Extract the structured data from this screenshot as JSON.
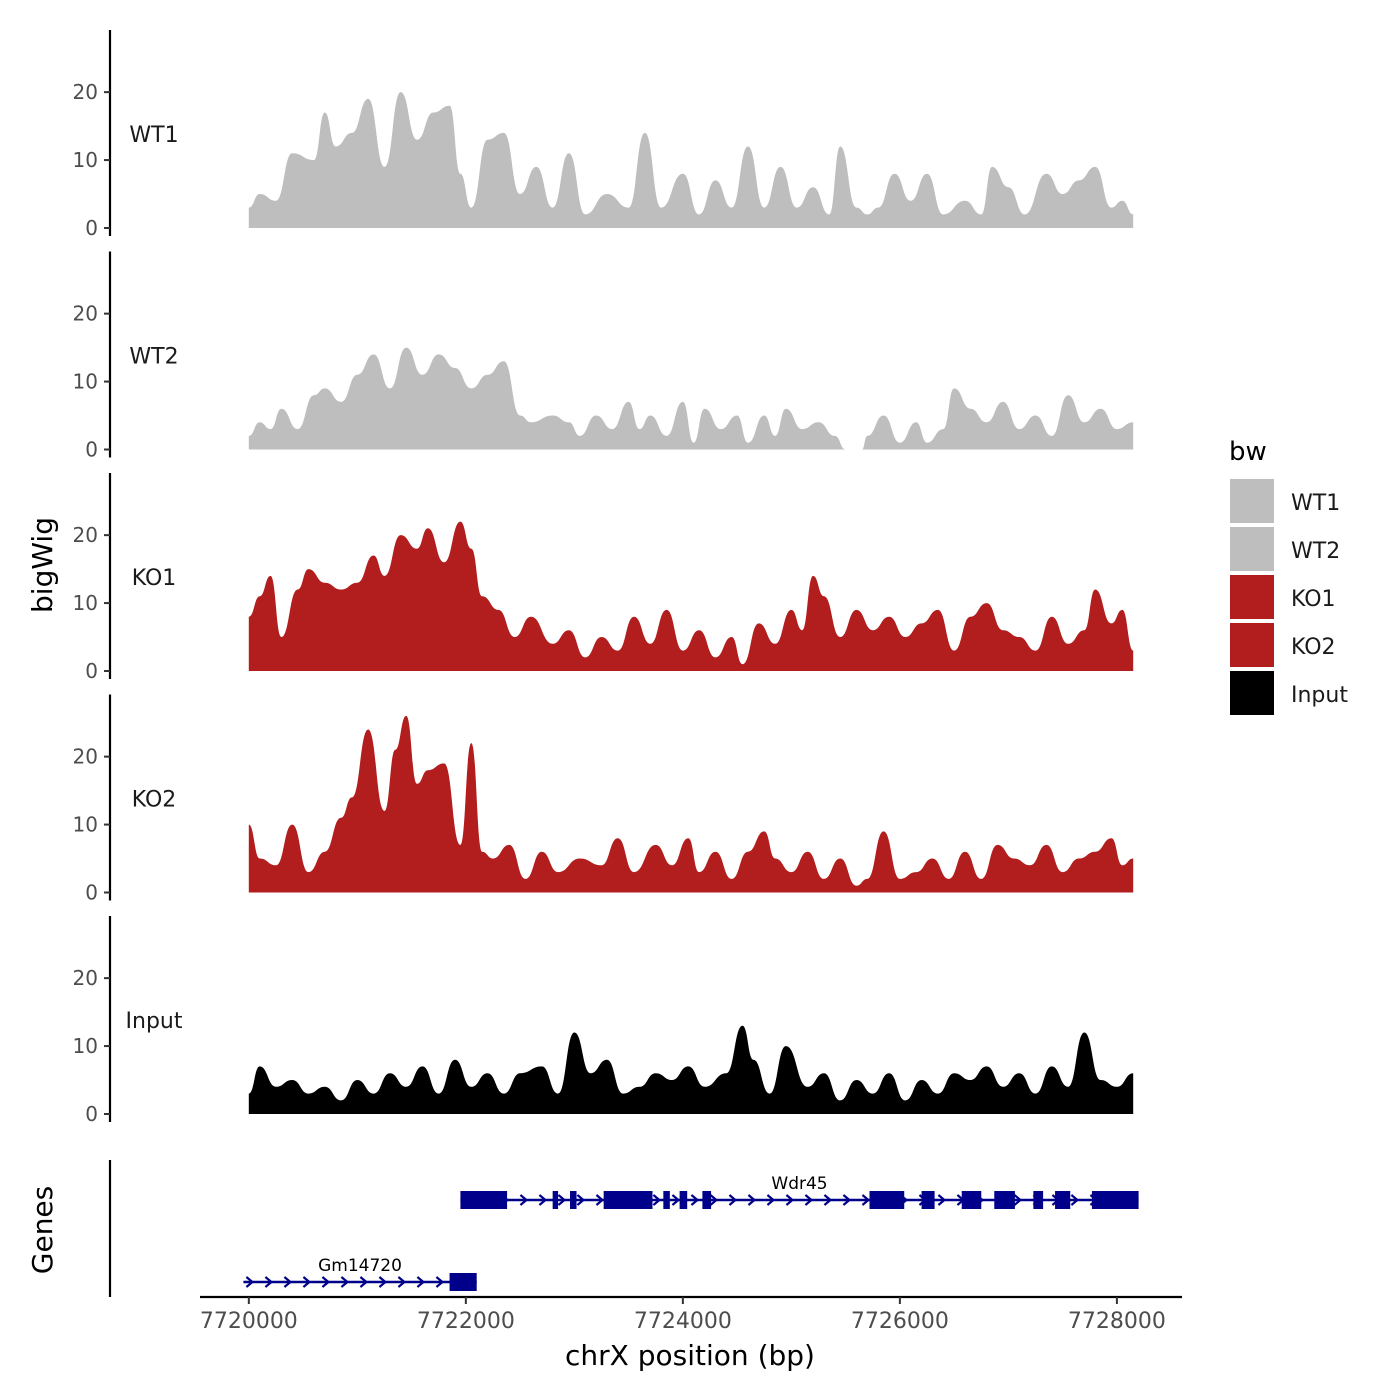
{
  "chart_data": {
    "type": "area",
    "y_axis_title": "bigWig",
    "genes_axis_title": "Genes",
    "x_axis_title": "chrX position (bp)",
    "x_range": [
      7719550,
      7728600
    ],
    "x_ticks": [
      7720000,
      7722000,
      7724000,
      7726000,
      7728000
    ],
    "x_tick_labels": [
      "7720000",
      "7722000",
      "7724000",
      "7726000",
      "7728000"
    ],
    "y_range": [
      0,
      29
    ],
    "y_ticks": [
      0,
      10,
      20
    ],
    "y_tick_labels": [
      "0",
      "10",
      "20"
    ],
    "legend": {
      "title": "bw",
      "entries": [
        {
          "label": "WT1",
          "color": "#bebebe"
        },
        {
          "label": "WT2",
          "color": "#bebebe"
        },
        {
          "label": "KO1",
          "color": "#b21e1e"
        },
        {
          "label": "KO2",
          "color": "#b21e1e"
        },
        {
          "label": "Input",
          "color": "#000000"
        }
      ]
    },
    "tracks": [
      {
        "name": "WT1",
        "color": "#bebebe",
        "x": [
          7720000,
          7720100,
          7720250,
          7720400,
          7720600,
          7720700,
          7720800,
          7720950,
          7721100,
          7721250,
          7721400,
          7721550,
          7721700,
          7721850,
          7721950,
          7722050,
          7722200,
          7722350,
          7722500,
          7722650,
          7722800,
          7722950,
          7723100,
          7723300,
          7723500,
          7723650,
          7723800,
          7724000,
          7724150,
          7724300,
          7724450,
          7724600,
          7724750,
          7724900,
          7725050,
          7725200,
          7725350,
          7725450,
          7725600,
          7725700,
          7725800,
          7725950,
          7726100,
          7726250,
          7726400,
          7726600,
          7726750,
          7726850,
          7727000,
          7727150,
          7727350,
          7727500,
          7727650,
          7727800,
          7727950,
          7728050,
          7728150
        ],
        "values": [
          3,
          5,
          4,
          11,
          10,
          17,
          12,
          14,
          19,
          9,
          20,
          13,
          17,
          18,
          8,
          3,
          13,
          14,
          5,
          9,
          3,
          11,
          2,
          5,
          3,
          14,
          3,
          8,
          2,
          7,
          3,
          12,
          3,
          9,
          3,
          6,
          2,
          12,
          3,
          2,
          3,
          8,
          4,
          8,
          2,
          4,
          2,
          9,
          6,
          2,
          8,
          5,
          7,
          9,
          3,
          4,
          2
        ]
      },
      {
        "name": "WT2",
        "color": "#bebebe",
        "x": [
          7720000,
          7720100,
          7720200,
          7720300,
          7720450,
          7720600,
          7720700,
          7720850,
          7721000,
          7721150,
          7721300,
          7721450,
          7721600,
          7721750,
          7721900,
          7722050,
          7722200,
          7722350,
          7722500,
          7722600,
          7722800,
          7722950,
          7723050,
          7723200,
          7723350,
          7723500,
          7723600,
          7723700,
          7723850,
          7724000,
          7724100,
          7724200,
          7724350,
          7724500,
          7724600,
          7724750,
          7724850,
          7724950,
          7725100,
          7725250,
          7725400,
          7725500,
          7725650,
          7725700,
          7725850,
          7726000,
          7726150,
          7726250,
          7726400,
          7726500,
          7726650,
          7726800,
          7726950,
          7727100,
          7727250,
          7727400,
          7727550,
          7727700,
          7727850,
          7728000,
          7728150
        ],
        "values": [
          2,
          4,
          3,
          6,
          3,
          8,
          9,
          7,
          11,
          14,
          9,
          15,
          11,
          14,
          12,
          9,
          11,
          13,
          5,
          4,
          5,
          4,
          2,
          5,
          3,
          7,
          3,
          5,
          2,
          7,
          1,
          6,
          3,
          5,
          1,
          5,
          2,
          6,
          3,
          4,
          2,
          0,
          0,
          2,
          5,
          1,
          4,
          1,
          3,
          9,
          6,
          4,
          7,
          3,
          5,
          2,
          8,
          4,
          6,
          3,
          4
        ]
      },
      {
        "name": "KO1",
        "color": "#b21e1e",
        "x": [
          7720000,
          7720100,
          7720200,
          7720300,
          7720450,
          7720550,
          7720700,
          7720850,
          7721000,
          7721150,
          7721250,
          7721400,
          7721550,
          7721650,
          7721800,
          7721950,
          7722050,
          7722150,
          7722300,
          7722450,
          7722600,
          7722800,
          7722950,
          7723100,
          7723250,
          7723400,
          7723550,
          7723700,
          7723850,
          7724000,
          7724150,
          7724300,
          7724450,
          7724550,
          7724700,
          7724850,
          7725000,
          7725100,
          7725200,
          7725300,
          7725450,
          7725600,
          7725750,
          7725900,
          7726050,
          7726200,
          7726350,
          7726500,
          7726650,
          7726800,
          7726950,
          7727100,
          7727250,
          7727400,
          7727550,
          7727700,
          7727800,
          7727950,
          7728050,
          7728150
        ],
        "values": [
          8,
          11,
          14,
          5,
          12,
          15,
          13,
          12,
          13,
          17,
          14,
          20,
          18,
          21,
          16,
          22,
          18,
          11,
          9,
          5,
          8,
          4,
          6,
          2,
          5,
          3,
          8,
          4,
          9,
          3,
          6,
          2,
          5,
          1,
          7,
          4,
          9,
          6,
          14,
          11,
          5,
          9,
          6,
          8,
          5,
          7,
          9,
          3,
          8,
          10,
          6,
          5,
          3,
          8,
          4,
          6,
          12,
          7,
          9,
          3
        ]
      },
      {
        "name": "KO2",
        "color": "#b21e1e",
        "x": [
          7720000,
          7720100,
          7720250,
          7720400,
          7720550,
          7720700,
          7720850,
          7720950,
          7721100,
          7721250,
          7721350,
          7721450,
          7721550,
          7721650,
          7721800,
          7721950,
          7722050,
          7722150,
          7722250,
          7722400,
          7722550,
          7722700,
          7722850,
          7723050,
          7723250,
          7723400,
          7723550,
          7723750,
          7723900,
          7724050,
          7724150,
          7724300,
          7724450,
          7724600,
          7724750,
          7724850,
          7725000,
          7725150,
          7725300,
          7725450,
          7725600,
          7725700,
          7725850,
          7726000,
          7726150,
          7726300,
          7726450,
          7726600,
          7726750,
          7726900,
          7727050,
          7727200,
          7727350,
          7727500,
          7727650,
          7727800,
          7727950,
          7728050,
          7728150
        ],
        "values": [
          10,
          5,
          4,
          10,
          3,
          6,
          11,
          14,
          24,
          12,
          21,
          26,
          16,
          18,
          19,
          7,
          22,
          6,
          5,
          7,
          2,
          6,
          3,
          5,
          4,
          8,
          3,
          7,
          4,
          8,
          3,
          6,
          2,
          6,
          9,
          5,
          3,
          6,
          2,
          5,
          1,
          2,
          9,
          2,
          3,
          5,
          2,
          6,
          2,
          7,
          5,
          4,
          7,
          3,
          5,
          6,
          8,
          4,
          5
        ]
      },
      {
        "name": "Input",
        "color": "#000000",
        "x": [
          7720000,
          7720100,
          7720250,
          7720400,
          7720550,
          7720700,
          7720850,
          7721000,
          7721150,
          7721300,
          7721450,
          7721600,
          7721750,
          7721900,
          7722050,
          7722200,
          7722350,
          7722500,
          7722700,
          7722850,
          7723000,
          7723150,
          7723300,
          7723450,
          7723600,
          7723750,
          7723900,
          7724050,
          7724200,
          7724400,
          7724550,
          7724650,
          7724800,
          7724950,
          7725150,
          7725300,
          7725450,
          7725600,
          7725750,
          7725900,
          7726050,
          7726200,
          7726350,
          7726500,
          7726650,
          7726800,
          7726950,
          7727100,
          7727250,
          7727400,
          7727550,
          7727700,
          7727850,
          7728000,
          7728150
        ],
        "values": [
          3,
          7,
          4,
          5,
          3,
          4,
          2,
          5,
          3,
          6,
          4,
          7,
          3,
          8,
          4,
          6,
          3,
          6,
          7,
          3,
          12,
          6,
          8,
          3,
          4,
          6,
          5,
          7,
          4,
          6,
          13,
          8,
          3,
          10,
          4,
          6,
          2,
          5,
          3,
          6,
          2,
          5,
          3,
          6,
          5,
          7,
          4,
          6,
          3,
          7,
          4,
          12,
          5,
          4,
          6
        ]
      }
    ],
    "genes": [
      {
        "name": "Wdr45",
        "strand": "+",
        "start": 7721950,
        "end": 7728200,
        "exons": [
          [
            7721950,
            7722380
          ],
          [
            7722800,
            7722850
          ],
          [
            7722960,
            7723020
          ],
          [
            7723270,
            7723720
          ],
          [
            7723820,
            7723880
          ],
          [
            7723970,
            7724040
          ],
          [
            7724180,
            7724260
          ],
          [
            7725720,
            7726040
          ],
          [
            7726200,
            7726320
          ],
          [
            7726570,
            7726750
          ],
          [
            7726870,
            7727060
          ],
          [
            7727230,
            7727320
          ],
          [
            7727430,
            7727570
          ],
          [
            7727770,
            7728200
          ]
        ]
      },
      {
        "name": "Gm14720",
        "strand": "+",
        "start": 7719950,
        "end": 7722100,
        "exons": [
          [
            7721850,
            7722100
          ]
        ]
      }
    ]
  }
}
